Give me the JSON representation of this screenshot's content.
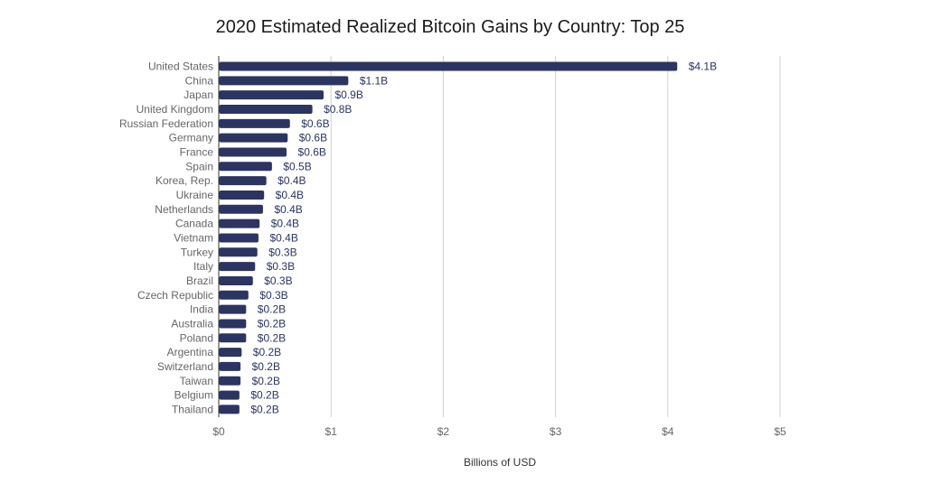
{
  "chart_data": {
    "type": "bar",
    "orientation": "horizontal",
    "title": "2020 Estimated Realized Bitcoin Gains by Country: Top 25",
    "xlabel": "Billions of USD",
    "ylabel": "",
    "xlim": [
      0,
      5
    ],
    "x_ticks": [
      0,
      1,
      2,
      3,
      4,
      5
    ],
    "x_tick_labels": [
      "$0",
      "$1",
      "$2",
      "$3",
      "$4",
      "$5"
    ],
    "grid": "vertical",
    "bar_color": "#2c3561",
    "categories": [
      "United States",
      "China",
      "Japan",
      "United Kingdom",
      "Russian Federation",
      "Germany",
      "France",
      "Spain",
      "Korea, Rep.",
      "Ukraine",
      "Netherlands",
      "Canada",
      "Vietnam",
      "Turkey",
      "Italy",
      "Brazil",
      "Czech Republic",
      "India",
      "Australia",
      "Poland",
      "Argentina",
      "Switzerland",
      "Taiwan",
      "Belgium",
      "Thailand"
    ],
    "values": [
      4.08,
      1.15,
      0.93,
      0.83,
      0.63,
      0.61,
      0.6,
      0.47,
      0.42,
      0.4,
      0.39,
      0.36,
      0.35,
      0.34,
      0.32,
      0.3,
      0.26,
      0.24,
      0.24,
      0.24,
      0.2,
      0.19,
      0.19,
      0.18,
      0.18
    ],
    "data_labels": [
      "$4.1B",
      "$1.1B",
      "$0.9B",
      "$0.8B",
      "$0.6B",
      "$0.6B",
      "$0.6B",
      "$0.5B",
      "$0.4B",
      "$0.4B",
      "$0.4B",
      "$0.4B",
      "$0.4B",
      "$0.3B",
      "$0.3B",
      "$0.3B",
      "$0.3B",
      "$0.2B",
      "$0.2B",
      "$0.2B",
      "$0.2B",
      "$0.2B",
      "$0.2B",
      "$0.2B",
      "$0.2B"
    ]
  }
}
